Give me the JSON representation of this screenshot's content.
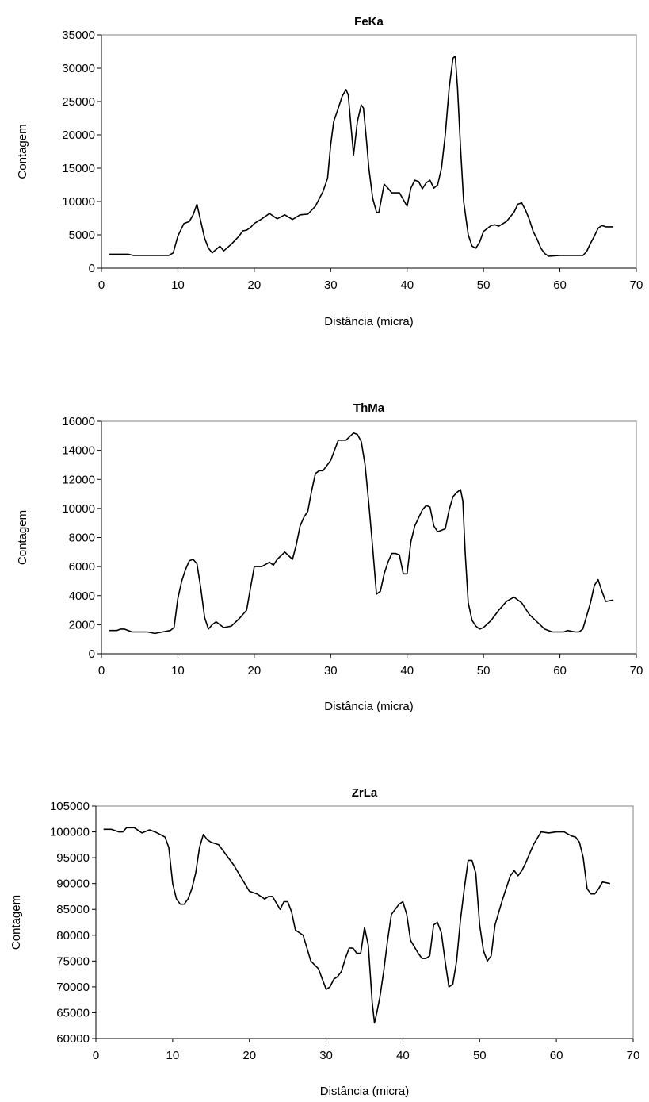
{
  "chart_data": [
    {
      "type": "line",
      "title": "FeKa",
      "xlabel": "Distância (micra)",
      "ylabel": "Contagem",
      "xlim": [
        0,
        70
      ],
      "ylim": [
        0,
        35000
      ],
      "xticks": [
        0,
        10,
        20,
        30,
        40,
        50,
        60,
        70
      ],
      "yticks": [
        0,
        5000,
        10000,
        15000,
        20000,
        25000,
        30000,
        35000
      ],
      "grid": false,
      "legend": "none",
      "series": [
        {
          "color": "#000000",
          "x": [
            1,
            3.5,
            4.2,
            6,
            8.8,
            9.4,
            10,
            10.8,
            11.5,
            12,
            12.5,
            13,
            13.5,
            14,
            14.5,
            15,
            15.5,
            16,
            17,
            18,
            18.5,
            19,
            19.5,
            20,
            21,
            22,
            23,
            24,
            25,
            26,
            27,
            28,
            29,
            29.6,
            30,
            30.4,
            31,
            31.5,
            32,
            32.3,
            32.6,
            33,
            33.5,
            34,
            34.3,
            34.7,
            35,
            35.5,
            36,
            36.3,
            37,
            37.5,
            38,
            39,
            40,
            40.5,
            41,
            41.5,
            42,
            42.5,
            43,
            43.5,
            44,
            44.5,
            45,
            45.5,
            46,
            46.3,
            46.6,
            47,
            47.4,
            48,
            48.5,
            49,
            49.5,
            50,
            51,
            51.5,
            52,
            53,
            54,
            54.5,
            55,
            55.5,
            56,
            56.5,
            57,
            57.5,
            58,
            58.5,
            60,
            62,
            63,
            63.5,
            64,
            64.5,
            65,
            65.5,
            66,
            67
          ],
          "y": [
            2100,
            2100,
            1900,
            1900,
            1900,
            2300,
            4800,
            6700,
            7000,
            8000,
            9600,
            7000,
            4500,
            3000,
            2300,
            2800,
            3300,
            2600,
            3600,
            4800,
            5600,
            5700,
            6100,
            6700,
            7400,
            8200,
            7400,
            8000,
            7300,
            8000,
            8100,
            9300,
            11500,
            13500,
            18500,
            22000,
            24000,
            25800,
            26800,
            26000,
            22000,
            17000,
            22000,
            24500,
            24000,
            19000,
            15000,
            10500,
            8400,
            8300,
            12600,
            12000,
            11300,
            11300,
            9300,
            12000,
            13200,
            13000,
            11900,
            12800,
            13200,
            12000,
            12500,
            15000,
            20000,
            27000,
            31500,
            31800,
            27000,
            18000,
            10000,
            5000,
            3300,
            3000,
            3900,
            5500,
            6400,
            6500,
            6300,
            7000,
            8400,
            9600,
            9800,
            8700,
            7300,
            5500,
            4400,
            3000,
            2200,
            1800,
            1900,
            1900,
            1900,
            2500,
            3700,
            4800,
            6000,
            6400,
            6200,
            6200
          ]
        }
      ]
    },
    {
      "type": "line",
      "title": "ThMa",
      "xlabel": "Distância (micra)",
      "ylabel": "Contagem",
      "xlim": [
        0,
        70
      ],
      "ylim": [
        0,
        16000
      ],
      "xticks": [
        0,
        10,
        20,
        30,
        40,
        50,
        60,
        70
      ],
      "yticks": [
        0,
        2000,
        4000,
        6000,
        8000,
        10000,
        12000,
        14000,
        16000
      ],
      "grid": false,
      "legend": "none",
      "series": [
        {
          "color": "#000000",
          "x": [
            1,
            2,
            2.5,
            3,
            4,
            5,
            6,
            7,
            8,
            9,
            9.5,
            10,
            10.5,
            11,
            11.5,
            12,
            12.5,
            13,
            13.5,
            14,
            14.5,
            15,
            15.5,
            16,
            17,
            18,
            19,
            19.5,
            20,
            21,
            22,
            22.5,
            23,
            24,
            25,
            25.5,
            26,
            26.5,
            27,
            27.5,
            28,
            28.5,
            29,
            30,
            30.5,
            31,
            32,
            33,
            33.5,
            34,
            34.5,
            35,
            35.5,
            36,
            36.5,
            37,
            37.5,
            38,
            38.5,
            39,
            39.5,
            40,
            40.5,
            41,
            42,
            42.5,
            43,
            43.5,
            44,
            45,
            45.5,
            46,
            46.5,
            47,
            47.3,
            47.6,
            48,
            48.5,
            49,
            49.5,
            50,
            51,
            52,
            53,
            54,
            55,
            56,
            57,
            58,
            59,
            60,
            60.5,
            61,
            62,
            62.5,
            63,
            63.5,
            64,
            64.5,
            65,
            65.5,
            66,
            67
          ],
          "y": [
            1600,
            1600,
            1700,
            1700,
            1500,
            1500,
            1500,
            1400,
            1500,
            1600,
            1800,
            3800,
            5000,
            5800,
            6400,
            6500,
            6200,
            4500,
            2500,
            1700,
            2000,
            2200,
            2000,
            1800,
            1900,
            2400,
            3000,
            4500,
            6000,
            6000,
            6300,
            6100,
            6500,
            7000,
            6500,
            7500,
            8800,
            9400,
            9800,
            11200,
            12400,
            12600,
            12600,
            13300,
            14000,
            14700,
            14700,
            15200,
            15100,
            14600,
            13000,
            10300,
            7300,
            4100,
            4300,
            5500,
            6300,
            6900,
            6900,
            6800,
            5500,
            5500,
            7700,
            8800,
            9900,
            10200,
            10100,
            8800,
            8400,
            8600,
            9900,
            10800,
            11100,
            11300,
            10500,
            7000,
            3500,
            2300,
            1900,
            1700,
            1800,
            2300,
            3000,
            3600,
            3900,
            3500,
            2700,
            2200,
            1700,
            1500,
            1500,
            1500,
            1600,
            1500,
            1500,
            1700,
            2600,
            3500,
            4700,
            5100,
            4300,
            3600,
            3700
          ]
        }
      ]
    },
    {
      "type": "line",
      "title": "ZrLa",
      "xlabel": "Distância (micra)",
      "ylabel": "Contagem",
      "xlim": [
        0,
        70
      ],
      "ylim": [
        60000,
        105000
      ],
      "xticks": [
        0,
        10,
        20,
        30,
        40,
        50,
        60,
        70
      ],
      "yticks": [
        60000,
        65000,
        70000,
        75000,
        80000,
        85000,
        90000,
        95000,
        100000,
        105000
      ],
      "grid": false,
      "legend": "none",
      "series": [
        {
          "color": "#000000",
          "x": [
            1,
            2,
            3,
            3.5,
            4,
            5,
            5.5,
            6,
            7,
            8,
            9,
            9.5,
            10,
            10.5,
            11,
            11.5,
            12,
            12.5,
            13,
            13.5,
            14,
            14.5,
            15,
            16,
            17,
            18,
            19,
            20,
            21,
            22,
            22.5,
            23,
            24,
            24.5,
            25,
            25.5,
            26,
            27,
            28,
            29,
            30,
            30.5,
            31,
            31.5,
            32,
            32.5,
            33,
            33.5,
            34,
            34.5,
            35,
            35.5,
            36,
            36.3,
            36.6,
            37,
            37.5,
            38,
            38.5,
            39,
            39.5,
            40,
            40.5,
            41,
            42,
            42.5,
            43,
            43.5,
            44,
            44.5,
            45,
            45.5,
            46,
            46.5,
            47,
            47.5,
            48,
            48.5,
            49,
            49.5,
            50,
            50.5,
            51,
            51.5,
            52,
            52.5,
            53,
            54,
            54.5,
            55,
            55.5,
            56,
            57,
            58,
            59,
            60,
            61,
            62,
            62.5,
            63,
            63.5,
            64,
            64.5,
            65,
            65.5,
            66,
            67
          ],
          "y": [
            100500,
            100500,
            100000,
            100000,
            100800,
            100800,
            100300,
            99800,
            100400,
            99800,
            99000,
            97000,
            90000,
            87000,
            86000,
            86000,
            87000,
            89000,
            92000,
            97000,
            99500,
            98500,
            98000,
            97500,
            95500,
            93500,
            91000,
            88500,
            88000,
            87000,
            87500,
            87500,
            85000,
            86500,
            86500,
            84500,
            81000,
            80000,
            75000,
            73500,
            69500,
            70000,
            71500,
            72000,
            73000,
            75500,
            77500,
            77500,
            76500,
            76500,
            81500,
            78000,
            67000,
            63000,
            65000,
            68000,
            73000,
            79000,
            84000,
            85000,
            86000,
            86500,
            84000,
            79000,
            76500,
            75500,
            75500,
            76000,
            82000,
            82500,
            80500,
            75000,
            70000,
            70500,
            75000,
            83000,
            89000,
            94500,
            94500,
            92000,
            82000,
            77000,
            75000,
            76000,
            82000,
            84500,
            87000,
            91500,
            92500,
            91500,
            92500,
            94000,
            97500,
            100000,
            99800,
            100000,
            100000,
            99200,
            99000,
            98000,
            95000,
            89000,
            88000,
            88000,
            89000,
            90300,
            90000
          ]
        }
      ]
    }
  ]
}
